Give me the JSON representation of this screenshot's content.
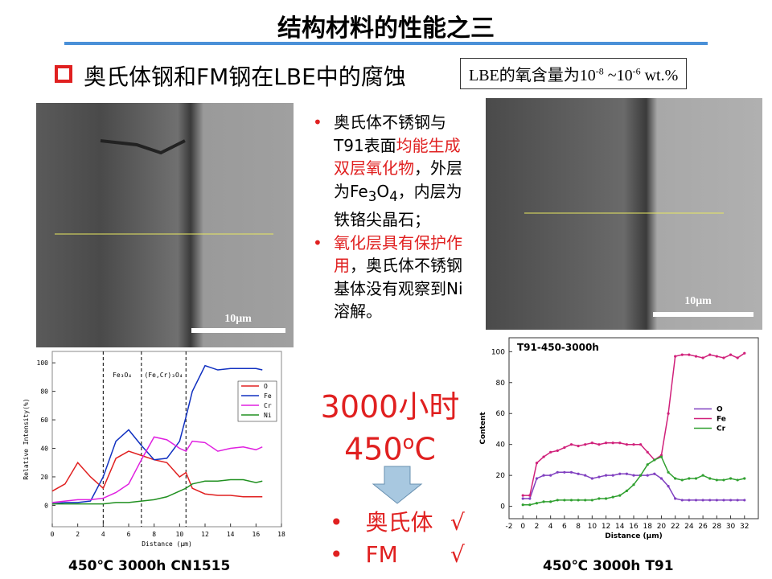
{
  "title": "结构材料的性能之三",
  "section": "奥氏体钢和FM钢在LBE中的腐蚀",
  "note": [
    "LBE的氧含量为10",
    "-8",
    " ~10",
    "-6",
    " wt.%"
  ],
  "images": [
    {
      "scale": "10μm",
      "caption": "450℃ 3000h CN1515"
    },
    {
      "scale": "10μm",
      "caption": "450℃ 3000h T91"
    }
  ],
  "bullets": [
    [
      {
        "text": "奥氏体不锈钢与T91表面"
      },
      {
        "text": "均能生成双层氧化物",
        "highlight": true
      },
      {
        "text": "，外层为Fe"
      },
      {
        "text": "3",
        "sub": true
      },
      {
        "text": "O"
      },
      {
        "text": "4",
        "sub": true
      },
      {
        "text": "，内层为铁铬尖晶石；"
      }
    ],
    [
      {
        "text": "氧化层具有保护作用",
        "highlight": true
      },
      {
        "text": "，奥氏体不锈钢基体没有观察到Ni溶解。"
      }
    ]
  ],
  "conditions": [
    "3000小时",
    "450",
    "o",
    "C"
  ],
  "results": [
    {
      "text": "奥氏体",
      "check": "√"
    },
    {
      "text": "FM",
      "check": "√"
    }
  ],
  "chart_data": [
    {
      "type": "line",
      "xlabel": "Distance (μm)",
      "ylabel": "Relative Intensity(%)",
      "legend": "upper right",
      "x": [
        0,
        1,
        2,
        3,
        4,
        5,
        6,
        7,
        8,
        9,
        10,
        10.5,
        11,
        12,
        13,
        14,
        15,
        16,
        16.5
      ],
      "series": [
        {
          "name": "O",
          "color": "#e02020",
          "values": [
            10,
            15,
            30,
            20,
            12,
            33,
            38,
            35,
            32,
            30,
            20,
            23,
            12,
            8,
            7,
            7,
            6,
            6,
            6
          ]
        },
        {
          "name": "Fe",
          "color": "#1030c0",
          "values": [
            1,
            2,
            2,
            3,
            20,
            45,
            53,
            42,
            32,
            33,
            45,
            62,
            80,
            98,
            95,
            96,
            96,
            96,
            95
          ]
        },
        {
          "name": "Cr",
          "color": "#e020e0",
          "values": [
            2,
            3,
            4,
            4,
            5,
            9,
            15,
            32,
            48,
            46,
            40,
            38,
            45,
            44,
            38,
            40,
            41,
            39,
            41
          ]
        },
        {
          "name": "Ni",
          "color": "#209020",
          "values": [
            1,
            1,
            1,
            1,
            1,
            2,
            2,
            3,
            4,
            6,
            10,
            12,
            15,
            17,
            17,
            18,
            18,
            16,
            17
          ]
        }
      ],
      "vlines": [
        4,
        7,
        10.5
      ],
      "annotations": [
        "Fe₃O₄",
        "(Fe,Cr)₃O₄"
      ],
      "xlim": [
        0,
        18
      ],
      "xticks": [
        0,
        2,
        4,
        6,
        8,
        10,
        12,
        14,
        16,
        18
      ],
      "ylim": [
        -15,
        108
      ],
      "yticks": [
        0,
        20,
        40,
        60,
        80,
        100
      ]
    },
    {
      "type": "line",
      "title": "T91-450-3000h",
      "xlabel": "Distance (μm)",
      "ylabel": "Content",
      "legend": "center right",
      "markers": true,
      "x": [
        0,
        1,
        2,
        3,
        4,
        5,
        6,
        7,
        8,
        9,
        10,
        11,
        12,
        13,
        14,
        15,
        16,
        17,
        18,
        19,
        20,
        21,
        22,
        23,
        24,
        25,
        26,
        27,
        28,
        29,
        30,
        31,
        32
      ],
      "series": [
        {
          "name": "O",
          "color": "#8040c0",
          "values": [
            5,
            5,
            18,
            20,
            20,
            22,
            22,
            22,
            21,
            20,
            18,
            19,
            20,
            20,
            21,
            21,
            20,
            20,
            20,
            21,
            18,
            13,
            5,
            4,
            4,
            4,
            4,
            4,
            4,
            4,
            4,
            4,
            4
          ]
        },
        {
          "name": "Fe",
          "color": "#d0207a",
          "values": [
            7,
            7,
            28,
            32,
            35,
            36,
            38,
            40,
            39,
            40,
            41,
            40,
            41,
            41,
            41,
            40,
            40,
            40,
            35,
            30,
            33,
            60,
            97,
            98,
            98,
            97,
            96,
            98,
            97,
            96,
            98,
            96,
            99
          ]
        },
        {
          "name": "Cr",
          "color": "#30a030",
          "values": [
            1,
            1,
            2,
            3,
            3,
            4,
            4,
            4,
            4,
            4,
            4,
            5,
            5,
            6,
            7,
            10,
            14,
            20,
            27,
            30,
            32,
            22,
            18,
            17,
            18,
            18,
            20,
            18,
            17,
            17,
            18,
            17,
            18
          ]
        }
      ],
      "xlim": [
        -2,
        34
      ],
      "xticks": [
        -2,
        0,
        2,
        4,
        6,
        8,
        10,
        12,
        14,
        16,
        18,
        20,
        22,
        24,
        26,
        28,
        30,
        32
      ],
      "ylim": [
        -8,
        109
      ],
      "yticks": [
        0,
        20,
        40,
        60,
        80,
        100
      ]
    }
  ]
}
